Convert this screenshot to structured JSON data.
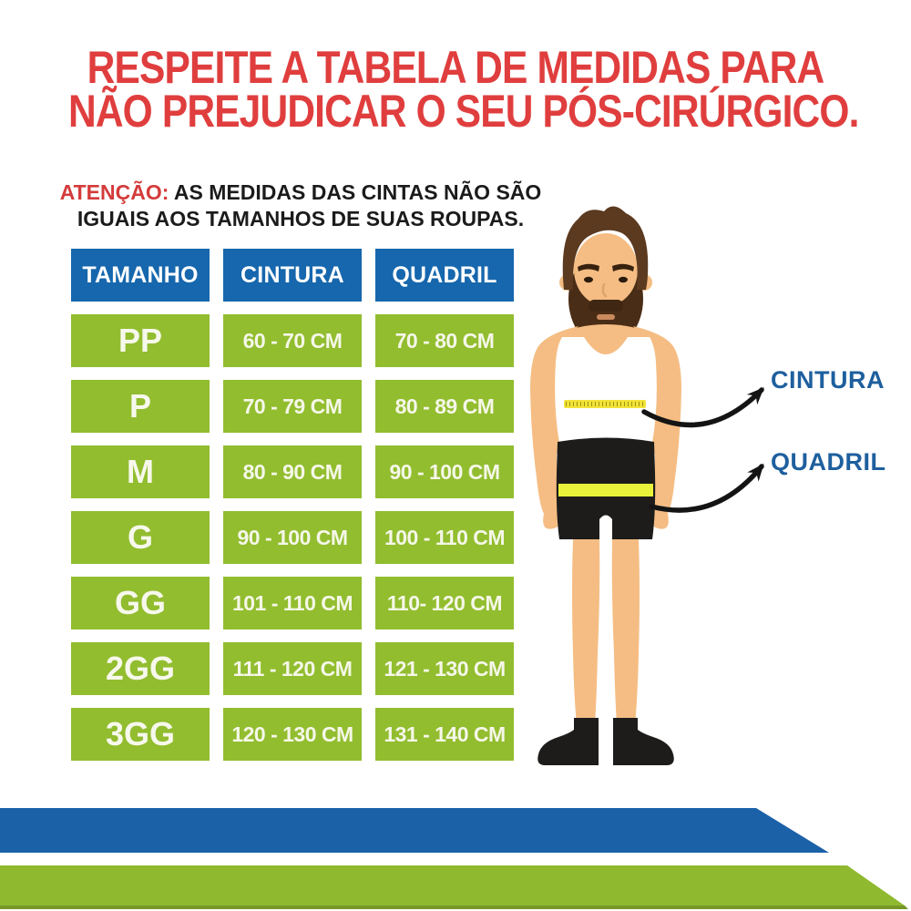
{
  "title": {
    "line1": "RESPEITE A TABELA DE MEDIDAS PARA",
    "line2": "NÃO PREJUDICAR O SEU PÓS-CIRÚRGICO."
  },
  "attention": {
    "prefix": "ATENÇÃO:",
    "line1_rest": " AS MEDIDAS DAS CINTAS NÃO SÃO",
    "line2": "IGUAIS AOS TAMANHOS DE SUAS ROUPAS."
  },
  "table": {
    "headers": [
      "TAMANHO",
      "CINTURA",
      "QUADRIL"
    ],
    "rows": [
      {
        "size": "PP",
        "cintura": "60 - 70 CM",
        "quadril": "70 - 80 CM"
      },
      {
        "size": "P",
        "cintura": "70 - 79 CM",
        "quadril": "80 - 89 CM"
      },
      {
        "size": "M",
        "cintura": "80 - 90 CM",
        "quadril": "90 - 100 CM"
      },
      {
        "size": "G",
        "cintura": "90 - 100 CM",
        "quadril": "100 - 110 CM"
      },
      {
        "size": "GG",
        "cintura": "101 - 110 CM",
        "quadril": "110- 120 CM"
      },
      {
        "size": "2GG",
        "cintura": "111 - 120 CM",
        "quadril": "121 - 130 CM"
      },
      {
        "size": "3GG",
        "cintura": "120 - 130 CM",
        "quadril": "131 - 140 CM"
      }
    ]
  },
  "figure": {
    "waist_label": "CINTURA",
    "hip_label": "QUADRIL"
  },
  "colors": {
    "title_red": "#e03e3e",
    "header_blue": "#1667ad",
    "row_green": "#92bd2f",
    "label_blue": "#1e5f9e",
    "band_blue": "#1b61a8",
    "band_green": "#8fb92e",
    "skin": "#f5bd83",
    "tape_yellow": "#f2e339",
    "hip_tape_yellow": "#e9f23b"
  }
}
